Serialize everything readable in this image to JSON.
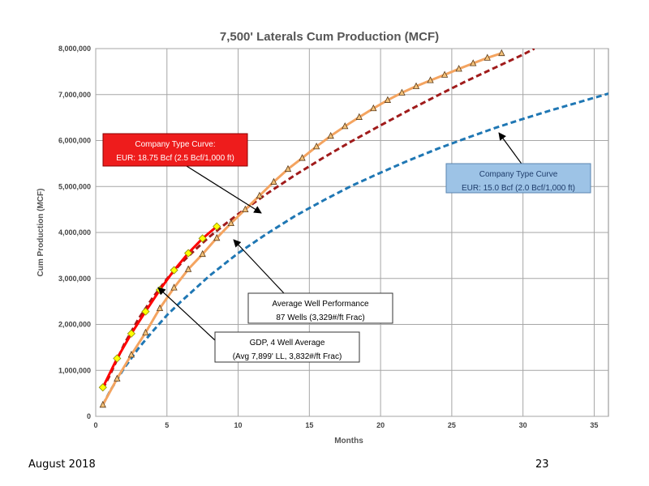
{
  "chart_data": {
    "type": "line",
    "title": "7,500' Laterals Cum Production (MCF)",
    "xlabel": "Months",
    "ylabel": "Cum Production (MCF)",
    "xlim": [
      0,
      36
    ],
    "ylim": [
      0,
      8000000
    ],
    "x_ticks": [
      "0",
      "5",
      "10",
      "15",
      "20",
      "25",
      "30",
      "35"
    ],
    "y_ticks": [
      "0",
      "1,000,000",
      "2,000,000",
      "3,000,000",
      "4,000,000",
      "5,000,000",
      "6,000,000",
      "7,000,000",
      "8,000,000"
    ],
    "grid": true,
    "series": [
      {
        "id": "blue-type-curve",
        "style": "dashed",
        "color": "#1f77b4",
        "x": [
          0.5,
          1,
          2,
          3,
          4,
          5,
          6,
          8,
          10,
          12,
          14,
          16,
          18,
          20,
          22,
          24,
          26,
          28,
          30,
          32,
          34,
          36
        ],
        "y": [
          250000,
          550000,
          1050000,
          1480000,
          1850000,
          2200000,
          2500000,
          3060000,
          3550000,
          3970000,
          4360000,
          4700000,
          5020000,
          5300000,
          5570000,
          5820000,
          6050000,
          6270000,
          6470000,
          6660000,
          6840000,
          7020000
        ]
      },
      {
        "id": "red-type-curve",
        "style": "dashed",
        "color": "#a01b1b",
        "x": [
          0.5,
          1,
          2,
          3,
          4,
          5,
          6,
          7,
          8,
          9,
          10,
          12,
          14,
          16,
          18,
          20,
          22,
          24,
          26,
          28,
          30,
          30.8
        ],
        "y": [
          600000,
          900000,
          1570000,
          2120000,
          2580000,
          2990000,
          3330000,
          3630000,
          3910000,
          4160000,
          4400000,
          4840000,
          5250000,
          5630000,
          5990000,
          6330000,
          6660000,
          6980000,
          7290000,
          7580000,
          7870000,
          8000000
        ]
      },
      {
        "id": "average-well",
        "name": "Average Well Performance",
        "style": "solid-triangles",
        "color": "#f4a460",
        "x": [
          0.5,
          1.5,
          2.5,
          3.5,
          4.5,
          5.5,
          6.5,
          7.5,
          8.5,
          9.5,
          10.5,
          11.5,
          12.5,
          13.5,
          14.5,
          15.5,
          16.5,
          17.5,
          18.5,
          19.5,
          20.5,
          21.5,
          22.5,
          23.5,
          24.5,
          25.5,
          26.5,
          27.5,
          28.5
        ],
        "y": [
          250000,
          820000,
          1340000,
          1820000,
          2350000,
          2800000,
          3200000,
          3530000,
          3880000,
          4200000,
          4500000,
          4800000,
          5100000,
          5380000,
          5620000,
          5870000,
          6100000,
          6310000,
          6510000,
          6700000,
          6880000,
          7040000,
          7180000,
          7310000,
          7430000,
          7560000,
          7680000,
          7800000,
          7900000
        ]
      },
      {
        "id": "gdp-average",
        "name": "GDP, 4 Well Average",
        "style": "solid-diamonds",
        "color": "#ff0000",
        "x": [
          0.5,
          1.5,
          2.5,
          3.5,
          4.5,
          5.5,
          6.5,
          7.5,
          8.5
        ],
        "y": [
          630000,
          1260000,
          1800000,
          2280000,
          2750000,
          3180000,
          3550000,
          3870000,
          4130000
        ]
      }
    ],
    "annotations": [
      {
        "id": "red",
        "lines": [
          "Company Type Curve:",
          "EUR: 18.75 Bcf (2.5 Bcf/1,000 ft)"
        ]
      },
      {
        "id": "blue",
        "lines": [
          "Company Type Curve",
          "EUR: 15.0 Bcf (2.0 Bcf/1,000 ft)"
        ]
      },
      {
        "id": "avg",
        "lines": [
          "Average Well Performance",
          "87 Wells (3,329#/ft Frac)"
        ]
      },
      {
        "id": "gdp",
        "lines": [
          "GDP,  4 Well Average",
          "(Avg 7,899' LL, 3,832#/ft Frac)"
        ]
      }
    ]
  },
  "footer": {
    "date": "August 2018",
    "page": "23"
  }
}
